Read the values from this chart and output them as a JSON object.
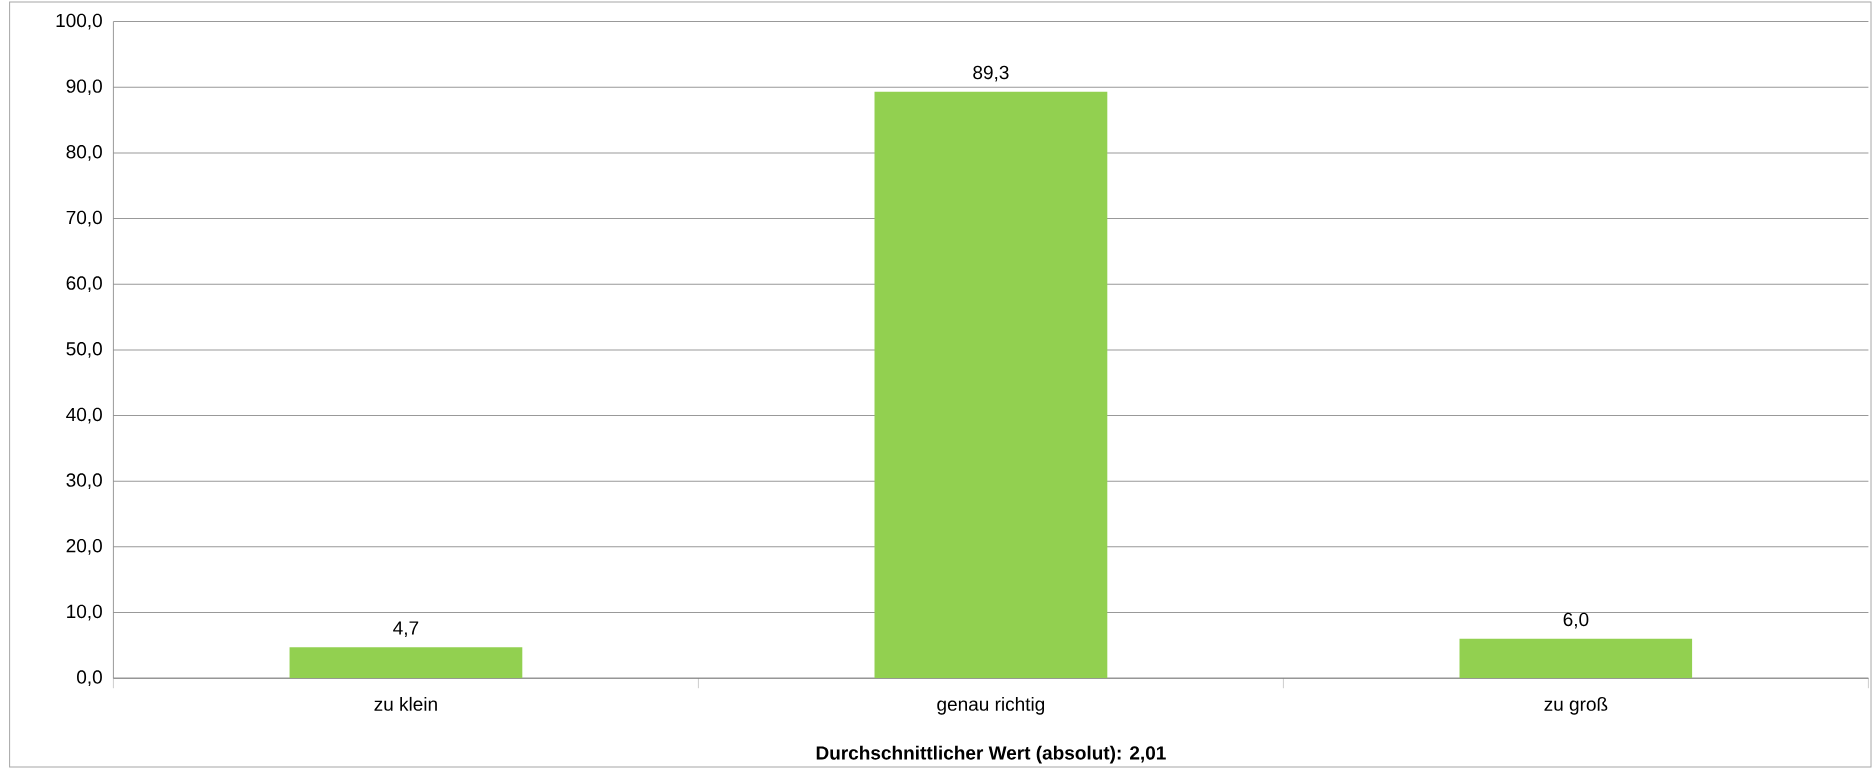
{
  "chart_data": {
    "type": "bar",
    "xlabel": "**Durchschnittlicher Wert (absolut): 2,01**",
    "categories": [
      "zu klein",
      "genau richtig",
      "zu groß"
    ],
    "values": [
      4.7,
      89.3,
      6.0
    ],
    "value_labels": [
      "4,7",
      "89,3",
      "6,0"
    ],
    "color": "#92d050",
    "ylim": [
      0,
      100
    ],
    "yticks": [
      {
        "value": 0,
        "label": "0,0"
      },
      {
        "value": 10,
        "label": "10,0"
      },
      {
        "value": 20,
        "label": "20,0"
      },
      {
        "value": 30,
        "label": "30,0"
      },
      {
        "value": 40,
        "label": "40,0"
      },
      {
        "value": 50,
        "label": "50,0"
      },
      {
        "value": 60,
        "label": "60,0"
      },
      {
        "value": 70,
        "label": "70,0"
      },
      {
        "value": 80,
        "label": "80,0"
      },
      {
        "value": 90,
        "label": "90,0"
      },
      {
        "value": 100,
        "label": "100,0"
      }
    ],
    "grid": "y"
  }
}
